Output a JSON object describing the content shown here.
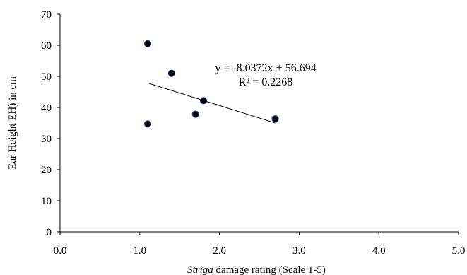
{
  "chart_data": {
    "type": "scatter",
    "title": "",
    "xlabel_italic": "Striga",
    "xlabel_rest": " damage rating (Scale 1-5)",
    "ylabel": "Ear Height EH) in cm",
    "xlim": [
      0,
      5
    ],
    "ylim": [
      0,
      70
    ],
    "x_ticks": [
      "0.0",
      "1.0",
      "2.0",
      "3.0",
      "4.0",
      "5.0"
    ],
    "y_ticks": [
      "0",
      "10",
      "20",
      "30",
      "40",
      "50",
      "60",
      "70"
    ],
    "grid": false,
    "legend": "none",
    "points": [
      {
        "x": 1.1,
        "y": 60.5
      },
      {
        "x": 1.4,
        "y": 51.0
      },
      {
        "x": 1.8,
        "y": 42.2
      },
      {
        "x": 1.7,
        "y": 37.8
      },
      {
        "x": 1.1,
        "y": 34.7
      },
      {
        "x": 2.7,
        "y": 36.3
      }
    ],
    "trendline": {
      "type": "linear",
      "slope": -8.0372,
      "intercept": 56.694,
      "x_range": [
        1.1,
        2.7
      ],
      "equation": "y = -8.0372x + 56.694",
      "r_squared": "R² = 0.2268"
    },
    "colors": {
      "marker_fill": "#000000",
      "marker_stroke": "#1f3f7a",
      "trendline": "#000000",
      "axis": "#000000"
    }
  }
}
